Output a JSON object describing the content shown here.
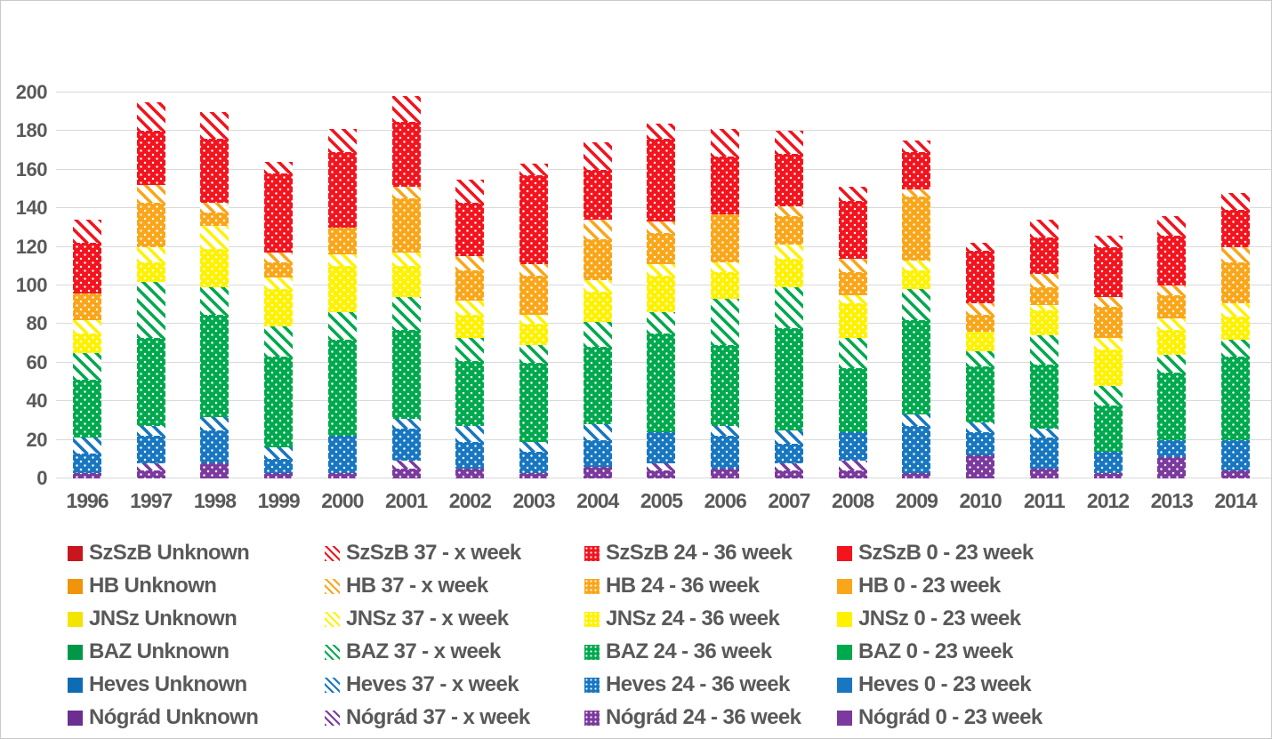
{
  "chart_data": {
    "type": "bar",
    "stacked": true,
    "title": "",
    "xlabel": "",
    "ylabel": "",
    "categories": [
      "1996",
      "1997",
      "1998",
      "1999",
      "2000",
      "2001",
      "2002",
      "2003",
      "2004",
      "2005",
      "2006",
      "2007",
      "2008",
      "2009",
      "2010",
      "2011",
      "2012",
      "2013",
      "2014"
    ],
    "ylim": [
      0,
      200
    ],
    "yticks": [
      0,
      20,
      40,
      60,
      80,
      100,
      120,
      140,
      160,
      180,
      200
    ],
    "grid": true,
    "legend_position": "bottom",
    "colors": {
      "SzSzB": {
        "base": "#F3141E",
        "dark": "#C9161E"
      },
      "HB": {
        "base": "#FAA61A",
        "dark": "#F0940A"
      },
      "JNSz": {
        "base": "#FFF200",
        "dark": "#F2E500"
      },
      "BAZ": {
        "base": "#00A94E",
        "dark": "#009847"
      },
      "Heves": {
        "base": "#1877C0",
        "dark": "#0E6CB4"
      },
      "Nógrád": {
        "base": "#7B3A9E",
        "dark": "#6C2F90"
      }
    },
    "series": [
      {
        "label": "SzSzB Unknown",
        "region": "SzSzB",
        "band": "Unknown",
        "pattern": "solid-dark",
        "values": [
          0,
          0,
          0,
          0,
          0,
          0,
          0,
          0,
          0,
          0,
          0,
          0,
          0,
          0,
          0,
          0,
          0,
          0,
          0
        ]
      },
      {
        "label": "SzSzB 37 - x week",
        "region": "SzSzB",
        "band": "37 - x week",
        "pattern": "striped",
        "values": [
          12,
          15,
          14,
          6,
          12,
          13,
          12,
          6,
          14,
          8,
          14,
          12,
          7,
          6,
          4,
          9,
          6,
          10,
          9
        ]
      },
      {
        "label": "SzSzB 24 - 36 week",
        "region": "SzSzB",
        "band": "24 - 36 week",
        "pattern": "dotted",
        "values": [
          26,
          28,
          33,
          41,
          39,
          34,
          28,
          46,
          26,
          43,
          30,
          27,
          30,
          19,
          27,
          19,
          26,
          26,
          19
        ]
      },
      {
        "label": "SzSzB 0 - 23 week",
        "region": "SzSzB",
        "band": "0 - 23 week",
        "pattern": "solid",
        "values": [
          0,
          0,
          0,
          0,
          0,
          0,
          0,
          0,
          0,
          0,
          0,
          0,
          0,
          0,
          0,
          0,
          0,
          0,
          0
        ]
      },
      {
        "label": "HB Unknown",
        "region": "HB",
        "band": "Unknown",
        "pattern": "solid-dark",
        "values": [
          0,
          0,
          0,
          0,
          0,
          0,
          0,
          0,
          0,
          0,
          0,
          0,
          0,
          0,
          0,
          0,
          0,
          0,
          0
        ]
      },
      {
        "label": "HB 37 - x week",
        "region": "HB",
        "band": "37 - x week",
        "pattern": "striped",
        "values": [
          0,
          9,
          5,
          5,
          0,
          6,
          7,
          6,
          10,
          6,
          0,
          5,
          7,
          4,
          6,
          7,
          5,
          5,
          8
        ]
      },
      {
        "label": "HB 24 - 36 week",
        "region": "HB",
        "band": "24 - 36 week",
        "pattern": "dotted",
        "values": [
          14,
          23,
          7,
          8,
          14,
          28,
          16,
          20,
          21,
          16,
          25,
          15,
          12,
          33,
          9,
          9,
          16,
          12,
          21
        ]
      },
      {
        "label": "HB 0 - 23 week",
        "region": "HB",
        "band": "0 - 23 week",
        "pattern": "solid",
        "values": [
          0,
          0,
          0,
          0,
          0,
          0,
          0,
          0,
          0,
          0,
          0,
          0,
          0,
          0,
          0,
          0,
          0,
          0,
          0
        ]
      },
      {
        "label": "JNSz Unknown",
        "region": "JNSz",
        "band": "Unknown",
        "pattern": "solid-dark",
        "values": [
          0,
          0,
          0,
          0,
          0,
          0,
          0,
          0,
          0,
          0,
          0,
          0,
          0,
          0,
          0,
          0,
          0,
          0,
          0
        ]
      },
      {
        "label": "JNSz 37 - x week",
        "region": "JNSz",
        "band": "37 - x week",
        "pattern": "striped",
        "values": [
          7,
          8,
          12,
          6,
          6,
          7,
          7,
          5,
          6,
          6,
          5,
          7,
          4,
          5,
          0,
          3,
          6,
          6,
          7
        ]
      },
      {
        "label": "JNSz 24 - 36 week",
        "region": "JNSz",
        "band": "24 - 36 week",
        "pattern": "dotted",
        "values": [
          10,
          10,
          20,
          19,
          24,
          16,
          12,
          11,
          16,
          19,
          14,
          15,
          18,
          10,
          10,
          13,
          19,
          13,
          12
        ]
      },
      {
        "label": "JNSz 0 - 23 week",
        "region": "JNSz",
        "band": "0 - 23 week",
        "pattern": "solid",
        "values": [
          0,
          0,
          0,
          0,
          0,
          0,
          0,
          0,
          0,
          0,
          0,
          0,
          0,
          0,
          0,
          0,
          0,
          0,
          0
        ]
      },
      {
        "label": "BAZ Unknown",
        "region": "BAZ",
        "band": "Unknown",
        "pattern": "solid-dark",
        "values": [
          0,
          0,
          0,
          0,
          0,
          0,
          0,
          0,
          0,
          0,
          0,
          0,
          0,
          0,
          0,
          0,
          0,
          0,
          0
        ]
      },
      {
        "label": "BAZ 37 - x week",
        "region": "BAZ",
        "band": "37 - x week",
        "pattern": "striped",
        "values": [
          14,
          29,
          14,
          16,
          14,
          17,
          12,
          9,
          13,
          11,
          24,
          21,
          16,
          16,
          8,
          15,
          10,
          9,
          9
        ]
      },
      {
        "label": "BAZ 24 - 36 week",
        "region": "BAZ",
        "band": "24 - 36 week",
        "pattern": "dotted",
        "values": [
          30,
          46,
          53,
          47,
          50,
          46,
          34,
          41,
          40,
          51,
          42,
          53,
          33,
          49,
          29,
          33,
          24,
          35,
          43
        ]
      },
      {
        "label": "BAZ 0 - 23 week",
        "region": "BAZ",
        "band": "0 - 23 week",
        "pattern": "solid",
        "values": [
          0,
          0,
          0,
          0,
          0,
          0,
          0,
          0,
          0,
          0,
          0,
          0,
          0,
          0,
          0,
          0,
          0,
          0,
          0
        ]
      },
      {
        "label": "Heves Unknown",
        "region": "Heves",
        "band": "Unknown",
        "pattern": "solid-dark",
        "values": [
          0,
          0,
          0,
          0,
          0,
          0,
          0,
          0,
          0,
          0,
          0,
          0,
          0,
          0,
          0,
          0,
          0,
          0,
          0
        ]
      },
      {
        "label": "Heves 37 - x week",
        "region": "Heves",
        "band": "37 - x week",
        "pattern": "striped",
        "values": [
          8,
          5,
          7,
          6,
          0,
          5,
          8,
          5,
          8,
          0,
          5,
          7,
          0,
          6,
          5,
          5,
          0,
          0,
          0
        ]
      },
      {
        "label": "Heves 24 - 36 week",
        "region": "Heves",
        "band": "24 - 36 week",
        "pattern": "dotted",
        "values": [
          10,
          14,
          17,
          7,
          19,
          17,
          14,
          11,
          14,
          16,
          17,
          10,
          15,
          24,
          12,
          16,
          11,
          9,
          16
        ]
      },
      {
        "label": "Heves 0 - 23 week",
        "region": "Heves",
        "band": "0 - 23 week",
        "pattern": "solid",
        "values": [
          0,
          0,
          0,
          0,
          0,
          0,
          0,
          0,
          0,
          0,
          0,
          0,
          0,
          0,
          0,
          0,
          0,
          0,
          0
        ]
      },
      {
        "label": "Nógrád Unknown",
        "region": "Nógrád",
        "band": "Unknown",
        "pattern": "solid-dark",
        "values": [
          0,
          0,
          0,
          0,
          0,
          0,
          0,
          0,
          0,
          0,
          0,
          0,
          0,
          0,
          0,
          0,
          0,
          0,
          0
        ]
      },
      {
        "label": "Nógrád 37 - x week",
        "region": "Nógrád",
        "band": "37 - x week",
        "pattern": "striped",
        "values": [
          0,
          4,
          0,
          0,
          0,
          4,
          0,
          0,
          0,
          4,
          0,
          4,
          5,
          0,
          0,
          0,
          0,
          0,
          0
        ]
      },
      {
        "label": "Nógrád 24 - 36 week",
        "region": "Nógrád",
        "band": "24 - 36 week",
        "pattern": "dotted",
        "values": [
          3,
          4,
          8,
          3,
          3,
          5,
          5,
          3,
          6,
          4,
          5,
          4,
          4,
          3,
          12,
          5,
          3,
          11,
          4
        ]
      },
      {
        "label": "Nógrád 0 - 23 week",
        "region": "Nógrád",
        "band": "0 - 23 week",
        "pattern": "solid",
        "values": [
          0,
          0,
          0,
          0,
          0,
          0,
          0,
          0,
          0,
          0,
          0,
          0,
          0,
          0,
          0,
          0,
          0,
          0,
          0
        ]
      }
    ],
    "stack_order": [
      "Nógrád 0 - 23 week",
      "Nógrád 24 - 36 week",
      "Nógrád 37 - x week",
      "Nógrád Unknown",
      "Heves 0 - 23 week",
      "Heves 24 - 36 week",
      "Heves 37 - x week",
      "Heves Unknown",
      "BAZ 0 - 23 week",
      "BAZ 24 - 36 week",
      "BAZ 37 - x week",
      "BAZ Unknown",
      "JNSz 0 - 23 week",
      "JNSz 24 - 36 week",
      "JNSz 37 - x week",
      "JNSz Unknown",
      "HB 0 - 23 week",
      "HB 24 - 36 week",
      "HB 37 - x week",
      "HB Unknown",
      "SzSzB 0 - 23 week",
      "SzSzB 24 - 36 week",
      "SzSzB 37 - x week",
      "SzSzB Unknown"
    ]
  }
}
